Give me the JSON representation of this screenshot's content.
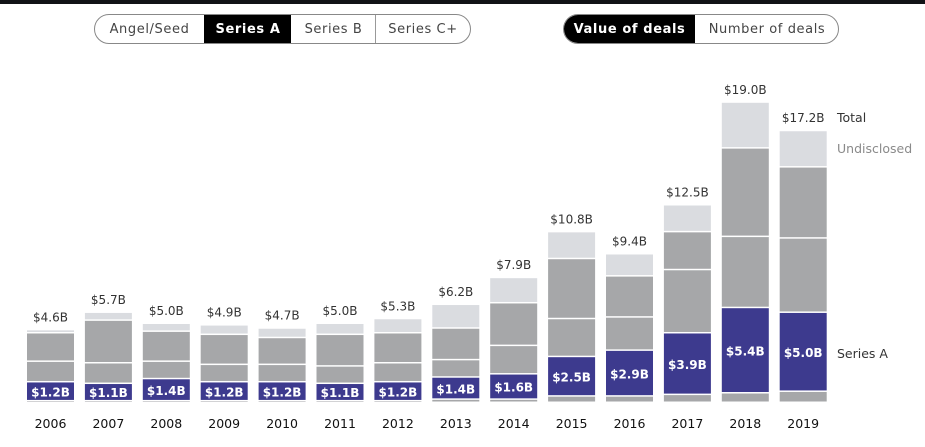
{
  "stage_toggle": {
    "options": [
      "Angel/Seed",
      "Series A",
      "Series B",
      "Series C+"
    ],
    "selected": "Series A"
  },
  "metric_toggle": {
    "options": [
      "Value of deals",
      "Number of deals"
    ],
    "selected": "Value of deals"
  },
  "colors": {
    "highlight": "#3d3a8e",
    "other": "#a6a7a9",
    "undisclosed": "#dadce0",
    "separator": "#f0f0f6",
    "text": "#333333",
    "label_light": "#8a8a8a"
  },
  "chart_data": {
    "type": "bar",
    "stacked": true,
    "title": "",
    "xlabel": "",
    "ylabel": "Value of deals ($B)",
    "ylim": [
      0,
      20
    ],
    "grid": false,
    "categories": [
      "2006",
      "2007",
      "2008",
      "2009",
      "2010",
      "2011",
      "2012",
      "2013",
      "2014",
      "2015",
      "2016",
      "2017",
      "2018",
      "2019"
    ],
    "series": [
      {
        "name": "Angel/Seed",
        "values": [
          0.1,
          0.1,
          0.1,
          0.1,
          0.1,
          0.1,
          0.1,
          0.2,
          0.2,
          0.4,
          0.4,
          0.5,
          0.6,
          0.7
        ]
      },
      {
        "name": "Series A",
        "values": [
          1.2,
          1.1,
          1.4,
          1.2,
          1.2,
          1.1,
          1.2,
          1.4,
          1.6,
          2.5,
          2.9,
          3.9,
          5.4,
          5.0
        ],
        "highlighted": true
      },
      {
        "name": "Series B",
        "values": [
          1.3,
          1.3,
          1.1,
          1.1,
          1.1,
          1.1,
          1.2,
          1.1,
          1.8,
          2.4,
          2.1,
          4.0,
          4.5,
          4.7
        ]
      },
      {
        "name": "Series C+",
        "values": [
          1.8,
          2.7,
          1.9,
          1.9,
          1.7,
          2.0,
          1.9,
          2.0,
          2.7,
          3.8,
          2.6,
          2.4,
          5.6,
          4.5
        ]
      },
      {
        "name": "Undisclosed",
        "values": [
          0.2,
          0.5,
          0.5,
          0.6,
          0.6,
          0.7,
          0.9,
          1.5,
          1.6,
          1.7,
          1.4,
          1.7,
          2.9,
          2.3
        ]
      }
    ],
    "series_a_labels": [
      "$1.2B",
      "$1.1B",
      "$1.4B",
      "$1.2B",
      "$1.2B",
      "$1.1B",
      "$1.2B",
      "$1.4B",
      "$1.6B",
      "$2.5B",
      "$2.9B",
      "$3.9B",
      "$5.4B",
      "$5.0B"
    ],
    "totals": [
      4.6,
      5.7,
      5.0,
      4.9,
      4.7,
      5.0,
      5.3,
      6.2,
      7.9,
      10.8,
      9.4,
      12.5,
      19.0,
      17.2
    ],
    "total_labels": [
      "$4.6B",
      "$5.7B",
      "$5.0B",
      "$4.9B",
      "$4.7B",
      "$5.0B",
      "$5.3B",
      "$6.2B",
      "$7.9B",
      "$10.8B",
      "$9.4B",
      "$12.5B",
      "$19.0B",
      "$17.2B"
    ],
    "annotations": {
      "total": "Total",
      "undisclosed": "Undisclosed",
      "series_a": "Series A"
    }
  }
}
